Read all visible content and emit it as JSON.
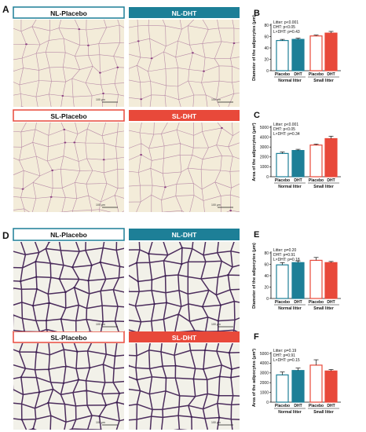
{
  "section_a": {
    "letter": "A",
    "panels": [
      {
        "label": "NL-Placebo",
        "style": "outline-blue"
      },
      {
        "label": "NL-DHT",
        "style": "fill-blue"
      },
      {
        "label": "SL-Placebo",
        "style": "outline-red"
      },
      {
        "label": "SL-DHT",
        "style": "fill-red"
      }
    ],
    "scale_bar": "100 μm"
  },
  "section_d": {
    "letter": "D",
    "panels": [
      {
        "label": "NL-Placebo",
        "style": "outline-blue"
      },
      {
        "label": "NL-DHT",
        "style": "fill-blue"
      },
      {
        "label": "SL-Placebo",
        "style": "outline-red"
      },
      {
        "label": "SL-DHT",
        "style": "fill-red"
      }
    ],
    "scale_bar": "100 μm"
  },
  "colors": {
    "blue": "#1d7f97",
    "red": "#e8493a",
    "placebo_fill": "#ffffff"
  },
  "chart_data": [
    {
      "panel": "B",
      "type": "bar",
      "ylabel": "Diameter of the adipocytes (μm)",
      "ylim": [
        0,
        80
      ],
      "yticks": [
        0,
        20,
        40,
        60,
        80
      ],
      "categories": [
        "Placebo",
        "DHT",
        "Placebo",
        "DHT"
      ],
      "groups": [
        "Normal litter",
        "Small litter"
      ],
      "values": [
        53,
        55,
        61,
        66
      ],
      "errors": [
        2,
        2,
        1.5,
        3
      ],
      "stats": [
        "Litter: p<0.001",
        "DHT: p<0.05",
        "L×DHT: p=0.43"
      ]
    },
    {
      "panel": "C",
      "type": "bar",
      "ylabel": "Area of the adipocytes (μm²)",
      "ylim": [
        0,
        5000
      ],
      "yticks": [
        0,
        1000,
        2000,
        3000,
        4000,
        5000
      ],
      "categories": [
        "Placebo",
        "DHT",
        "Placebo",
        "DHT"
      ],
      "groups": [
        "Normal litter",
        "Small litter"
      ],
      "values": [
        2350,
        2650,
        3200,
        3850
      ],
      "errors": [
        150,
        120,
        100,
        250
      ],
      "stats": [
        "Litter: p<0.001",
        "DHT: p<0.05",
        "L×DHT: p=0.34"
      ]
    },
    {
      "panel": "E",
      "type": "bar",
      "ylabel": "Diameter of the adipocytes (μm)",
      "ylim": [
        0,
        80
      ],
      "yticks": [
        0,
        20,
        40,
        60,
        80
      ],
      "categories": [
        "Placebo",
        "DHT",
        "Placebo",
        "DHT"
      ],
      "groups": [
        "Normal litter",
        "Small litter"
      ],
      "values": [
        59,
        63,
        67,
        63
      ],
      "errors": [
        4,
        3,
        5,
        2
      ],
      "stats": [
        "Litter: p=0.20",
        "DHT: p=0.91",
        "L×DHT: p=0.18"
      ]
    },
    {
      "panel": "F",
      "type": "bar",
      "ylabel": "Area of the adipocytes (μm²)",
      "ylim": [
        0,
        5000
      ],
      "yticks": [
        0,
        1000,
        2000,
        3000,
        4000,
        5000
      ],
      "categories": [
        "Placebo",
        "DHT",
        "Placebo",
        "DHT"
      ],
      "groups": [
        "Normal litter",
        "Small litter"
      ],
      "values": [
        2800,
        3250,
        3800,
        3200
      ],
      "errors": [
        300,
        250,
        550,
        150
      ],
      "stats": [
        "Litter: p=0.19",
        "DHT: p=0.91",
        "L×DHT: p=0.15"
      ]
    }
  ]
}
